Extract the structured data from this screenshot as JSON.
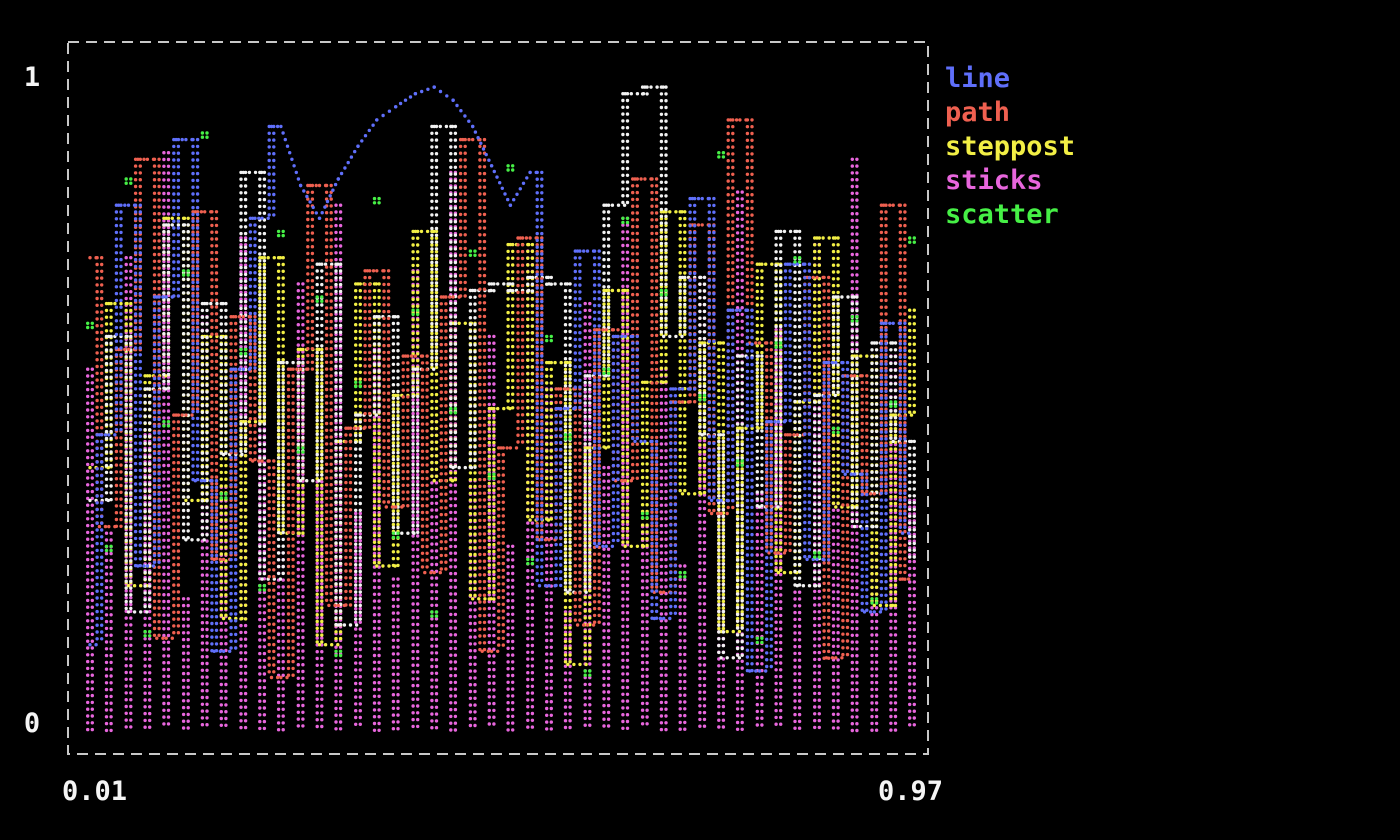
{
  "chart_data": {
    "type": "line",
    "title": "",
    "xlim": [
      0.01,
      0.97
    ],
    "ylim": [
      0,
      1
    ],
    "x_tick_labels": [
      "0.01",
      "0.97"
    ],
    "y_tick_labels": [
      "0",
      "1"
    ],
    "grid": false,
    "legend_position": "right",
    "background": "#000000",
    "frame_color": "#c8c8c8",
    "axis_text_color": "#f5f5f5",
    "x": [
      0.01,
      0.032,
      0.055,
      0.077,
      0.099,
      0.122,
      0.144,
      0.166,
      0.189,
      0.211,
      0.233,
      0.256,
      0.278,
      0.3,
      0.323,
      0.345,
      0.367,
      0.39,
      0.412,
      0.434,
      0.457,
      0.479,
      0.501,
      0.524,
      0.546,
      0.568,
      0.591,
      0.613,
      0.635,
      0.658,
      0.68,
      0.702,
      0.725,
      0.747,
      0.769,
      0.792,
      0.814,
      0.836,
      0.859,
      0.881,
      0.903,
      0.926,
      0.948,
      0.97
    ],
    "series": [
      {
        "name": "line",
        "style": "line",
        "color": "#5f6ffa",
        "values": [
          0.13,
          0.45,
          0.8,
          0.25,
          0.66,
          0.9,
          0.38,
          0.12,
          0.55,
          0.78,
          0.92,
          0.83,
          0.78,
          0.84,
          0.89,
          0.93,
          0.95,
          0.97,
          0.98,
          0.96,
          0.92,
          0.86,
          0.8,
          0.85,
          0.22,
          0.49,
          0.73,
          0.28,
          0.6,
          0.44,
          0.17,
          0.52,
          0.81,
          0.35,
          0.64,
          0.09,
          0.47,
          0.71,
          0.26,
          0.56,
          0.39,
          0.18,
          0.62,
          0.3
        ]
      },
      {
        "name": "path",
        "style": "path",
        "color": "#ef6050",
        "values": [
          0.72,
          0.31,
          0.58,
          0.87,
          0.14,
          0.48,
          0.79,
          0.26,
          0.63,
          0.41,
          0.08,
          0.55,
          0.83,
          0.19,
          0.46,
          0.7,
          0.34,
          0.57,
          0.24,
          0.66,
          0.9,
          0.12,
          0.43,
          0.75,
          0.29,
          0.52,
          0.16,
          0.61,
          0.38,
          0.84,
          0.21,
          0.5,
          0.77,
          0.33,
          0.93,
          0.59,
          0.27,
          0.45,
          0.69,
          0.11,
          0.54,
          0.36,
          0.8,
          0.23
        ]
      },
      {
        "name": "steppost",
        "style": "steppost",
        "color": "#f2ef45",
        "values": [
          0.4,
          0.65,
          0.22,
          0.54,
          0.78,
          0.35,
          0.6,
          0.17,
          0.47,
          0.72,
          0.3,
          0.58,
          0.13,
          0.44,
          0.68,
          0.25,
          0.51,
          0.76,
          0.38,
          0.62,
          0.2,
          0.49,
          0.74,
          0.32,
          0.56,
          0.1,
          0.43,
          0.67,
          0.28,
          0.53,
          0.79,
          0.36,
          0.59,
          0.15,
          0.46,
          0.71,
          0.24,
          0.5,
          0.75,
          0.34,
          0.57,
          0.19,
          0.48,
          0.64
        ]
      },
      {
        "name": "sticks",
        "style": "sticks",
        "color": "#e866dd",
        "values": [
          0.55,
          0.3,
          0.72,
          0.45,
          0.88,
          0.2,
          0.63,
          0.37,
          0.75,
          0.5,
          0.27,
          0.68,
          0.42,
          0.8,
          0.33,
          0.58,
          0.23,
          0.7,
          0.47,
          0.85,
          0.38,
          0.6,
          0.28,
          0.73,
          0.52,
          0.18,
          0.65,
          0.4,
          0.78,
          0.31,
          0.55,
          0.25,
          0.69,
          0.44,
          0.82,
          0.36,
          0.61,
          0.21,
          0.74,
          0.48,
          0.87,
          0.29,
          0.57,
          0.35
        ]
      },
      {
        "name": "scatter",
        "style": "scatter",
        "color": "#46f046",
        "values": [
          0.62,
          0.28,
          0.84,
          0.15,
          0.47,
          0.7,
          0.91,
          0.36,
          0.58,
          0.22,
          0.76,
          0.43,
          0.66,
          0.12,
          0.53,
          0.81,
          0.3,
          0.64,
          0.18,
          0.49,
          0.73,
          0.39,
          0.86,
          0.26,
          0.6,
          0.45,
          0.09,
          0.55,
          0.78,
          0.33,
          0.67,
          0.24,
          0.51,
          0.88,
          0.41,
          0.14,
          0.59,
          0.72,
          0.27,
          0.46,
          0.63,
          0.2,
          0.5,
          0.75
        ]
      },
      {
        "name": "",
        "style": "steppost",
        "color": "#f2f2f2",
        "values": [
          0.35,
          0.6,
          0.18,
          0.52,
          0.77,
          0.29,
          0.65,
          0.42,
          0.85,
          0.23,
          0.56,
          0.38,
          0.71,
          0.16,
          0.48,
          0.63,
          0.3,
          0.55,
          0.92,
          0.4,
          0.67,
          0.68,
          0.67,
          0.69,
          0.68,
          0.21,
          0.54,
          0.8,
          0.97,
          0.98,
          0.6,
          0.69,
          0.45,
          0.11,
          0.57,
          0.34,
          0.76,
          0.22,
          0.51,
          0.66,
          0.31,
          0.59,
          0.44,
          0.26
        ]
      }
    ],
    "legend": [
      {
        "label": "line",
        "color": "#5f6ffa"
      },
      {
        "label": "path",
        "color": "#ef6050"
      },
      {
        "label": "steppost",
        "color": "#f2ef45"
      },
      {
        "label": "sticks",
        "color": "#e866dd"
      },
      {
        "label": "scatter",
        "color": "#46f046"
      }
    ]
  },
  "axes": {
    "y_max": "1",
    "y_min": "0",
    "x_min": "0.01",
    "x_max": "0.97"
  }
}
